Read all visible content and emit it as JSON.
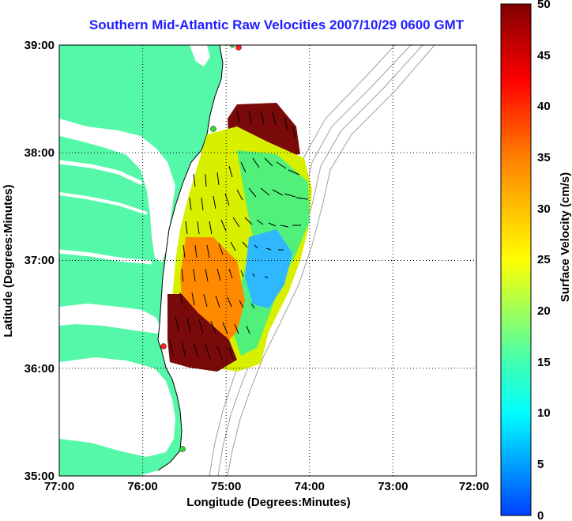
{
  "title": "Southern Mid-Atlantic Raw Velocities 2007/10/29 0600 GMT",
  "x_axis": {
    "label": "Longitude (Degrees:Minutes)",
    "ticks": [
      "77:00",
      "76:00",
      "75:00",
      "74:00",
      "73:00",
      "72:00"
    ]
  },
  "y_axis": {
    "label": "Latitude (Degrees:Minutes)",
    "ticks": [
      "39:00",
      "38:00",
      "37:00",
      "36:00",
      "35:00"
    ]
  },
  "colorbar": {
    "label": "Surface Velocity (cm/s)",
    "ticks": [
      "50",
      "45",
      "40",
      "35",
      "30",
      "25",
      "20",
      "15",
      "10",
      "5",
      "0"
    ],
    "min": 0,
    "max": 50
  },
  "colors": {
    "land": "#55f7a8",
    "grid": "#000000",
    "bathymetry": "#a0a0a0",
    "title": "#1f1fff",
    "station": "#ff2020"
  }
}
